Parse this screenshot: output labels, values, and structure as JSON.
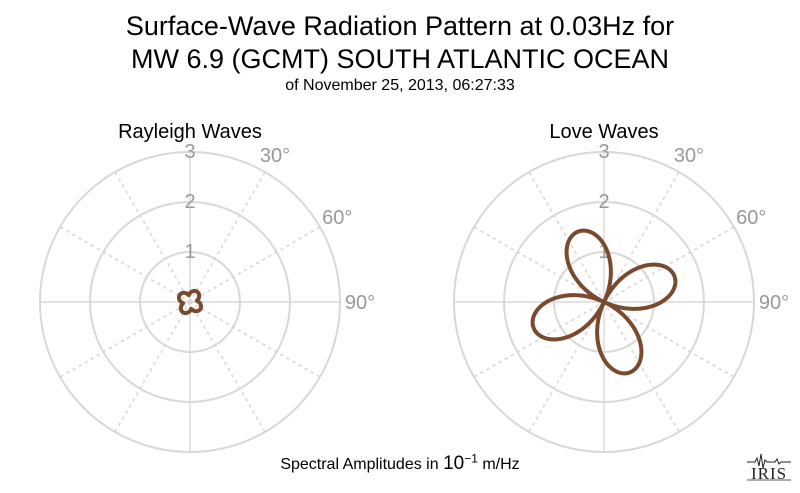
{
  "title": {
    "line1": "Surface-Wave Radiation Pattern at 0.03Hz for",
    "line2": "MW 6.9 (GCMT) SOUTH ATLANTIC OCEAN",
    "line3": "of November 25, 2013, 06:27:33"
  },
  "footer": {
    "prefix": "Spectral Amplitudes in ",
    "base": "10",
    "exponent": "−1",
    "unit": " m/Hz"
  },
  "logo": {
    "text": "IRIS"
  },
  "colors": {
    "pattern": "#7a4a2e",
    "grid": "#d8d8d8",
    "tick_text": "#999999"
  },
  "chart_data": [
    {
      "type": "polar-line",
      "title": "Rayleigh Waves",
      "radial_ticks": [
        "1",
        "2",
        "3"
      ],
      "radial_max": 3,
      "angle_ticks": [
        "30°",
        "60°",
        "90°"
      ],
      "angle_zero": "north",
      "angle_direction": "clockwise",
      "grid": true,
      "series": [
        {
          "lobes": 4,
          "lobe_center_deg": 35,
          "max_amplitude": 0.25,
          "min_amplitude": 0.14
        }
      ]
    },
    {
      "type": "polar-line",
      "title": "Love Waves",
      "radial_ticks": [
        "1",
        "2",
        "3"
      ],
      "radial_max": 3,
      "angle_ticks": [
        "30°",
        "60°",
        "90°"
      ],
      "angle_zero": "north",
      "angle_direction": "clockwise",
      "grid": true,
      "series": [
        {
          "lobes": 4,
          "lobe_center_deg": -20,
          "max_amplitude": 1.5,
          "min_amplitude": 0.0
        }
      ]
    }
  ]
}
